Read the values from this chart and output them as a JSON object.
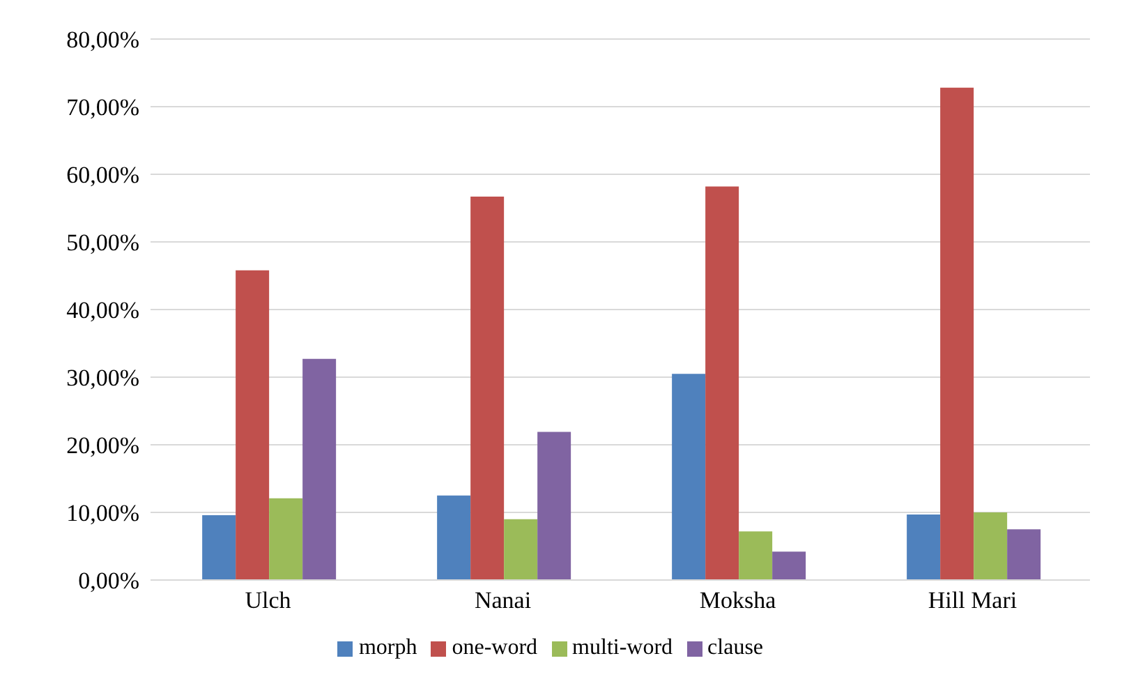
{
  "chart_data": {
    "type": "bar",
    "categories": [
      "Ulch",
      "Nanai",
      "Moksha",
      "Hill Mari"
    ],
    "series": [
      {
        "name": "morph",
        "color": "#4f81bd",
        "values": [
          9.6,
          12.5,
          30.5,
          9.7
        ]
      },
      {
        "name": "one-word",
        "color": "#c0504d",
        "values": [
          45.8,
          56.7,
          58.2,
          72.8
        ]
      },
      {
        "name": "multi-word",
        "color": "#9bbb59",
        "values": [
          12.1,
          9.0,
          7.2,
          10.0
        ]
      },
      {
        "name": "clause",
        "color": "#8064a2",
        "values": [
          32.7,
          21.9,
          4.2,
          7.5
        ]
      }
    ],
    "ylim": [
      0,
      80
    ],
    "yticks": [
      {
        "value": 0,
        "label": "0,00%"
      },
      {
        "value": 10,
        "label": "10,00%"
      },
      {
        "value": 20,
        "label": "20,00%"
      },
      {
        "value": 30,
        "label": "30,00%"
      },
      {
        "value": 40,
        "label": "40,00%"
      },
      {
        "value": 50,
        "label": "50,00%"
      },
      {
        "value": 60,
        "label": "60,00%"
      },
      {
        "value": 70,
        "label": "70,00%"
      },
      {
        "value": 80,
        "label": "80,00%"
      }
    ],
    "grid": "y",
    "legend": "bottom"
  }
}
